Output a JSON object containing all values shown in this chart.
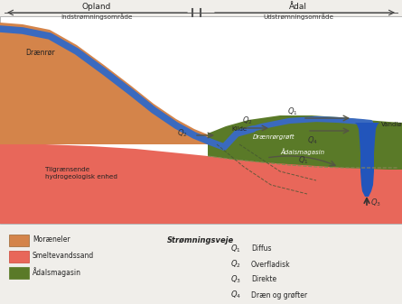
{
  "title_opland": "Opland",
  "title_adal": "Ådal",
  "sub_ind": "Indstrømningsområde",
  "sub_ud": "Udstrømningsområde",
  "label_draenror": "Drænrør",
  "label_draenrorgroeft": "Drænrørgrøft",
  "label_adalsmagasin": "Ådalsmagasin",
  "label_kilde": "Kilde",
  "label_vandlob": "Vandløb",
  "label_tilgraensende": "Tilgrænsende\nhydrogeologisk enhed",
  "color_moraeneler": "#d4844a",
  "color_smeltevandssand": "#e8675a",
  "color_adalsmagasin": "#5a7a28",
  "color_blue_stream": "#3a6abf",
  "color_blue_water": "#2255bb",
  "color_white": "#ffffff",
  "legend_moraeneler": "Moræneler",
  "legend_smeltevand": "Smeltevandssand",
  "legend_adals": "Ådalsmagasin",
  "legend_stromningsveje": "Strømningsveje",
  "fig_bg": "#f0eeea"
}
